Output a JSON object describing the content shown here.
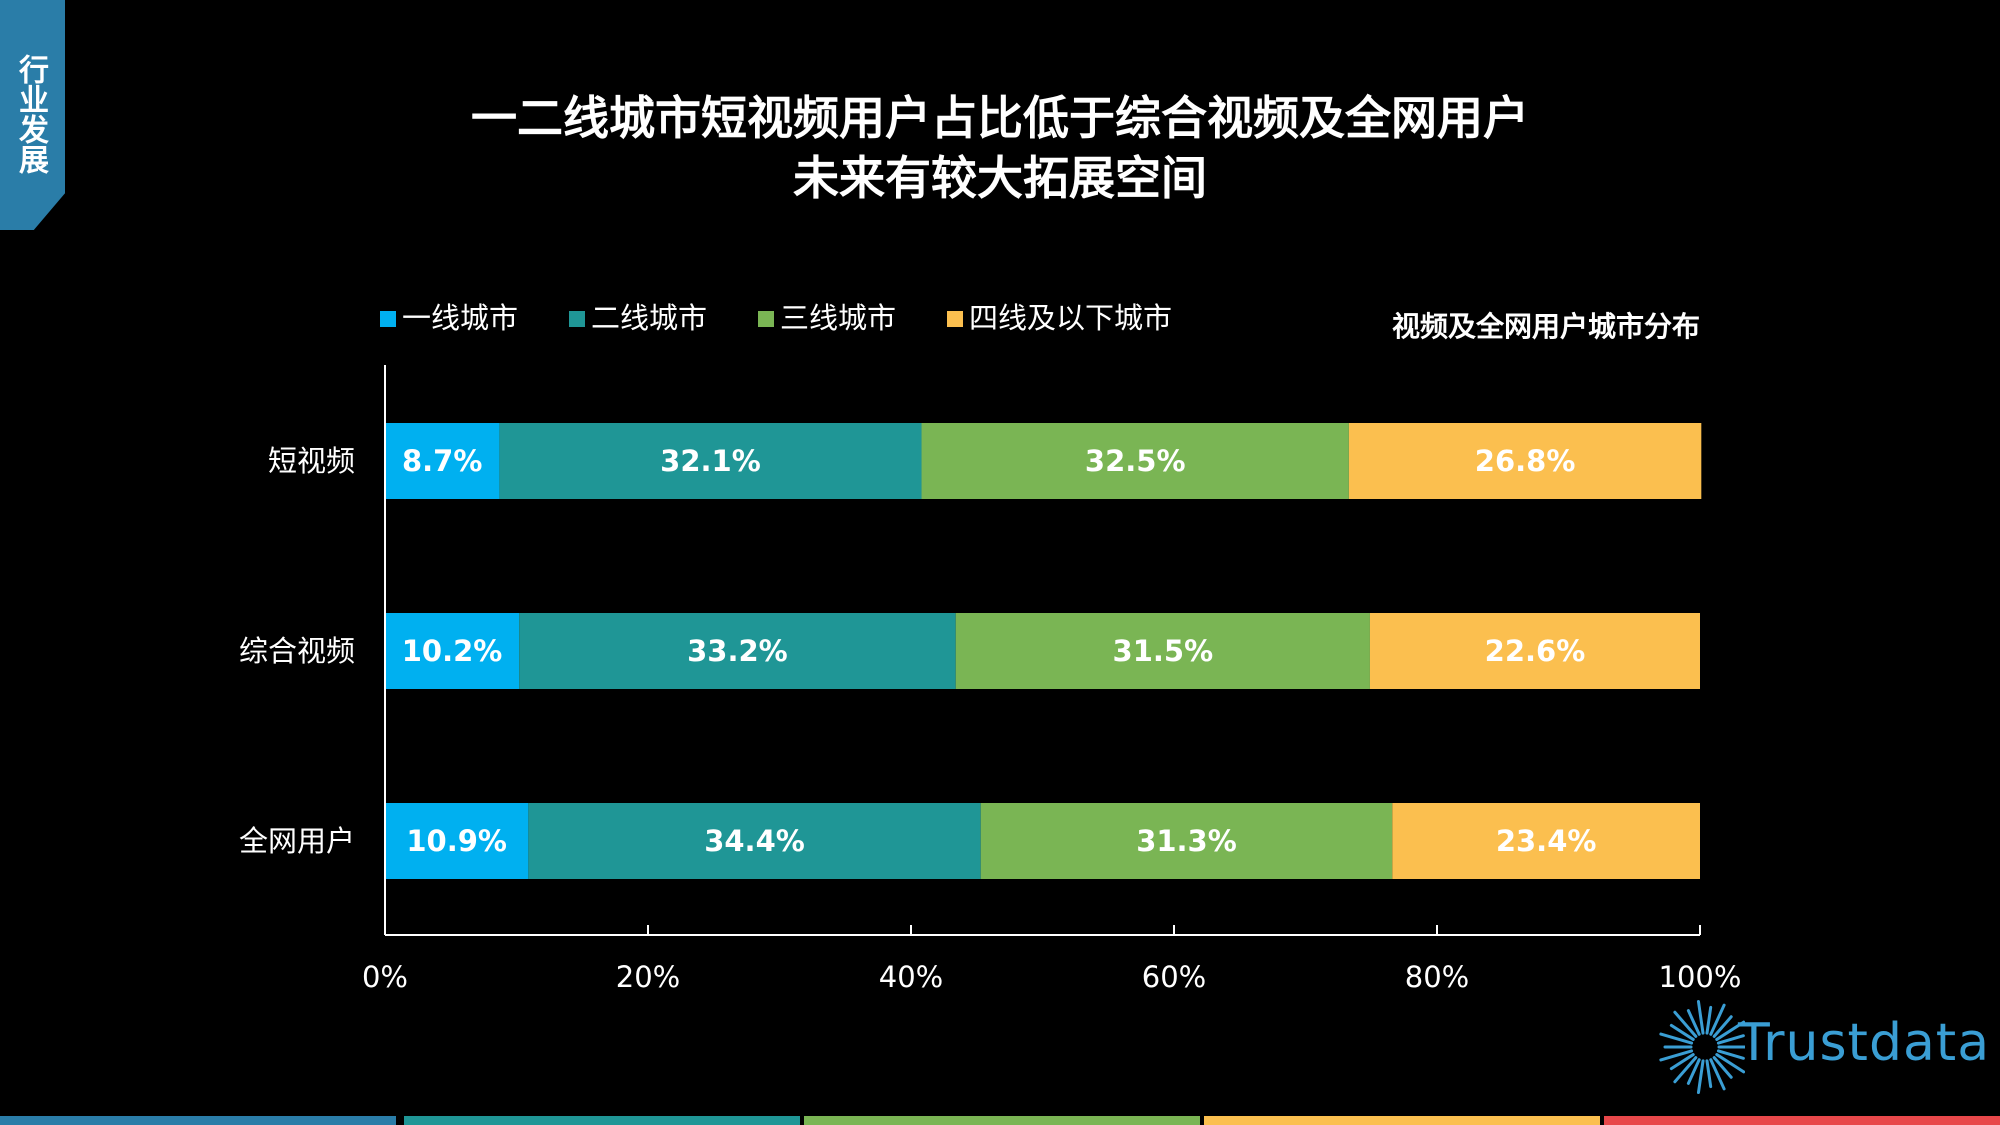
{
  "section_tab": {
    "label": "行业发展"
  },
  "header": {
    "title_line1": "一二线城市短视频用户占比低于综合视频及全网用户",
    "title_line2": "未来有较大拓展空间"
  },
  "brand": {
    "logo_text": "Trustdata"
  },
  "colors": {
    "tier1": "#00b0f0",
    "tier2": "#1f9696",
    "tier3": "#7ab554",
    "tier4": "#fbbf4f",
    "tab": "#2a7da8",
    "footer": [
      "#2a7da8",
      "#1f9696",
      "#7ab554",
      "#fbbf4f",
      "#e8474a"
    ]
  },
  "chart_data": {
    "type": "bar",
    "orientation": "horizontal",
    "stacked": true,
    "title": "视频及全网用户城市分布",
    "categories": [
      "短视频",
      "综合视频",
      "全网用户"
    ],
    "series": [
      {
        "name": "一线城市",
        "values": [
          8.7,
          10.2,
          10.9
        ],
        "labels": [
          "8.7%",
          "10.2%",
          "10.9%"
        ]
      },
      {
        "name": "二线城市",
        "values": [
          32.1,
          33.2,
          34.4
        ],
        "labels": [
          "32.1%",
          "33.2%",
          "34.4%"
        ]
      },
      {
        "name": "三线城市",
        "values": [
          32.5,
          31.5,
          31.3
        ],
        "labels": [
          "32.5%",
          "31.5%",
          "31.3%"
        ]
      },
      {
        "name": "四线及以下城市",
        "values": [
          26.8,
          22.6,
          23.4
        ],
        "labels": [
          "26.8%",
          "22.6%",
          "23.4%"
        ]
      }
    ],
    "xlim": [
      0,
      100
    ],
    "xticks": [
      "0%",
      "20%",
      "40%",
      "60%",
      "80%",
      "100%"
    ],
    "legend_position": "top",
    "grid": false
  }
}
